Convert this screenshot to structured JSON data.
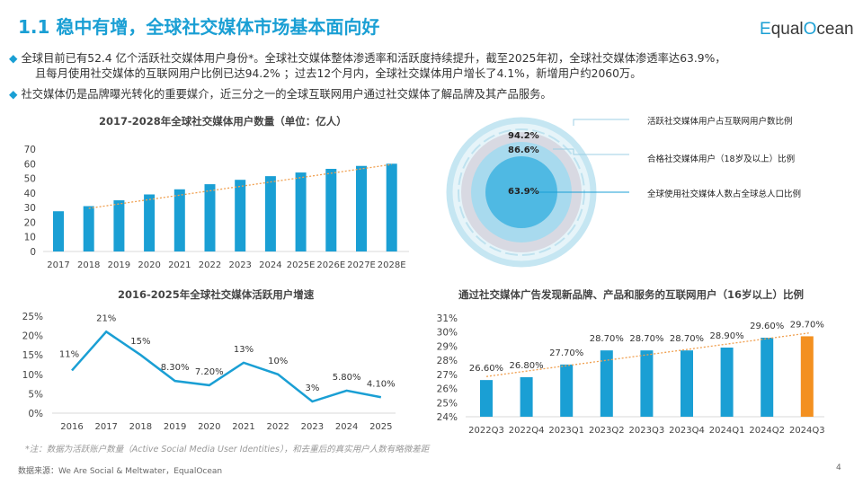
{
  "header": {
    "title": "1.1 稳中有增，全球社交媒体市场基本面向好",
    "logo": "EqualOcean"
  },
  "bullets": [
    {
      "lines": [
        "全球目前已有52.4 亿个活跃社交媒体用户身份*。全球社交媒体整体渗透率和活跃度持续提升，截至2025年初，全球社交媒体渗透率达63.9%，",
        "且每月使用社交媒体的互联网用户比例已达94.2% ；过去12个月内，全球社交媒体用户增长了4.1%，新增用户约2060万。"
      ]
    },
    {
      "lines": [
        "社交媒体仍是品牌曝光转化的重要媒介，近三分之一的全球互联网用户通过社交媒体了解品牌及其产品服务。"
      ]
    }
  ],
  "circle": {
    "rings": [
      {
        "value": "94.2%",
        "label": "活跃社交媒体用户占互联网用户数比例"
      },
      {
        "value": "86.6%",
        "label": "合格社交媒体用户（18岁及以上）比例"
      },
      {
        "value": "63.9%",
        "label": "全球使用社交媒体人数占全球总人口比例"
      }
    ]
  },
  "chart_data": [
    {
      "type": "bar",
      "title": "2017-2028年全球社交媒体用户数量（单位：亿人）",
      "categories": [
        "2017",
        "2018",
        "2019",
        "2020",
        "2021",
        "2022",
        "2023",
        "2024",
        "2025E",
        "2026E",
        "2027E",
        "2028E"
      ],
      "values": [
        27.5,
        31,
        35,
        39,
        42.5,
        46,
        49,
        51.5,
        54,
        56.5,
        58.5,
        60
      ],
      "ylim": [
        0,
        70
      ],
      "yticks": [
        "0",
        "10",
        "20",
        "30",
        "40",
        "50",
        "60",
        "70"
      ],
      "trendline": true,
      "color": "#1a9fd4",
      "trend_color": "#f0a050"
    },
    {
      "type": "line",
      "title": "2016-2025年全球社交媒体活跃用户增速",
      "categories": [
        "2016",
        "2017",
        "2018",
        "2019",
        "2020",
        "2021",
        "2022",
        "2023",
        "2024",
        "2025"
      ],
      "values": [
        11,
        21,
        15,
        8.3,
        7.2,
        13,
        10,
        3,
        5.8,
        4.1
      ],
      "data_labels": [
        "11%",
        "21%",
        "15%",
        "8.30%",
        "7.20%",
        "13%",
        "10%",
        "3%",
        "5.80%",
        "4.10%"
      ],
      "ylim": [
        0,
        25
      ],
      "yticks": [
        "0%",
        "5%",
        "10%",
        "15%",
        "20%",
        "25%"
      ],
      "color": "#1a9fd4"
    },
    {
      "type": "bar",
      "title": "通过社交媒体广告发现新品牌、产品和服务的互联网用户（16岁以上）比例",
      "categories": [
        "2022Q3",
        "2022Q4",
        "2023Q1",
        "2023Q2",
        "2023Q3",
        "2023Q4",
        "2024Q1",
        "2024Q2",
        "2024Q3"
      ],
      "values": [
        26.6,
        26.8,
        27.7,
        28.7,
        28.7,
        28.7,
        28.9,
        29.6,
        29.7
      ],
      "data_labels": [
        "26.60%",
        "26.80%",
        "27.70%",
        "28.70%",
        "28.70%",
        "28.70%",
        "28.90%",
        "29.60%",
        "29.70%"
      ],
      "ylim": [
        24,
        31
      ],
      "yticks": [
        "24%",
        "25%",
        "26%",
        "27%",
        "28%",
        "29%",
        "30%",
        "31%"
      ],
      "trendline": true,
      "color": "#1a9fd4",
      "highlight_color": "#f39020",
      "trend_color": "#f0a050"
    }
  ],
  "footer": {
    "note": "*注：数据为活跃账户数量（Active Social Media User Identities），和去重后的真实用户人数有略微差距",
    "source": "数据来源：We Are Social & Meltwater，EqualOcean",
    "page": "4"
  }
}
